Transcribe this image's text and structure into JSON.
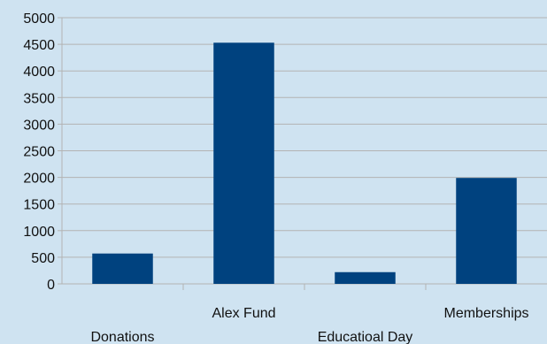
{
  "chart_data": {
    "type": "bar",
    "categories": [
      "Donations",
      "Alex Fund",
      "Educatioal Day",
      "Memberships"
    ],
    "values": [
      570,
      4530,
      220,
      1990
    ],
    "ylim": [
      0,
      5000
    ],
    "yticks": [
      0,
      500,
      1000,
      1500,
      2000,
      2500,
      3000,
      3500,
      4000,
      4500,
      5000
    ],
    "grid": true,
    "legend": "none",
    "title": "",
    "xlabel": "",
    "ylabel": "",
    "bar_color": "#00427f",
    "grid_color": "#b3b3b3",
    "background_color": "#cfe3f1"
  }
}
